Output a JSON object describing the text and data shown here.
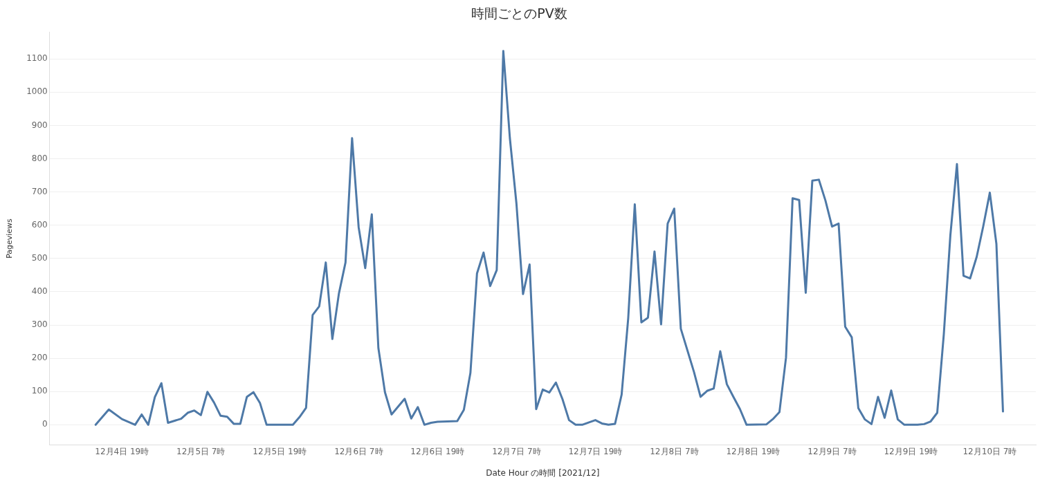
{
  "chart_data": {
    "type": "line",
    "title": "時間ごとのPV数",
    "xlabel": "Date Hour の時間 [2021/12]",
    "ylabel": "Pageviews",
    "x": [
      "2021-12-04T15:00",
      "2021-12-04T17:00",
      "2021-12-04T19:00",
      "2021-12-04T21:00",
      "2021-12-04T22:00",
      "2021-12-04T23:00",
      "2021-12-05T00:00",
      "2021-12-05T01:00",
      "2021-12-05T02:00",
      "2021-12-05T04:00",
      "2021-12-05T05:00",
      "2021-12-05T06:00",
      "2021-12-05T07:00",
      "2021-12-05T08:00",
      "2021-12-05T09:00",
      "2021-12-05T10:00",
      "2021-12-05T11:00",
      "2021-12-05T12:00",
      "2021-12-05T13:00",
      "2021-12-05T14:00",
      "2021-12-05T15:00",
      "2021-12-05T16:00",
      "2021-12-05T17:00",
      "2021-12-05T18:00",
      "2021-12-05T21:00",
      "2021-12-05T22:00",
      "2021-12-05T23:00",
      "2021-12-06T00:00",
      "2021-12-06T01:00",
      "2021-12-06T02:00",
      "2021-12-06T03:00",
      "2021-12-06T04:00",
      "2021-12-06T05:00",
      "2021-12-06T06:00",
      "2021-12-06T07:00",
      "2021-12-06T08:00",
      "2021-12-06T09:00",
      "2021-12-06T10:00",
      "2021-12-06T11:00",
      "2021-12-06T12:00",
      "2021-12-06T14:00",
      "2021-12-06T15:00",
      "2021-12-06T16:00",
      "2021-12-06T17:00",
      "2021-12-06T18:00",
      "2021-12-06T19:00",
      "2021-12-06T22:00",
      "2021-12-06T23:00",
      "2021-12-07T00:00",
      "2021-12-07T01:00",
      "2021-12-07T02:00",
      "2021-12-07T03:00",
      "2021-12-07T04:00",
      "2021-12-07T05:00",
      "2021-12-07T06:00",
      "2021-12-07T07:00",
      "2021-12-07T08:00",
      "2021-12-07T09:00",
      "2021-12-07T10:00",
      "2021-12-07T11:00",
      "2021-12-07T12:00",
      "2021-12-07T13:00",
      "2021-12-07T14:00",
      "2021-12-07T15:00",
      "2021-12-07T16:00",
      "2021-12-07T17:00",
      "2021-12-07T19:00",
      "2021-12-07T20:00",
      "2021-12-07T21:00",
      "2021-12-07T22:00",
      "2021-12-07T23:00",
      "2021-12-08T00:00",
      "2021-12-08T01:00",
      "2021-12-08T02:00",
      "2021-12-08T03:00",
      "2021-12-08T04:00",
      "2021-12-08T05:00",
      "2021-12-08T06:00",
      "2021-12-08T07:00",
      "2021-12-08T08:00",
      "2021-12-08T09:00",
      "2021-12-08T10:00",
      "2021-12-08T11:00",
      "2021-12-08T12:00",
      "2021-12-08T13:00",
      "2021-12-08T14:00",
      "2021-12-08T15:00",
      "2021-12-08T16:00",
      "2021-12-08T17:00",
      "2021-12-08T18:00",
      "2021-12-08T21:00",
      "2021-12-08T22:00",
      "2021-12-08T23:00",
      "2021-12-09T00:00",
      "2021-12-09T01:00",
      "2021-12-09T02:00",
      "2021-12-09T03:00",
      "2021-12-09T04:00",
      "2021-12-09T05:00",
      "2021-12-09T06:00",
      "2021-12-09T07:00",
      "2021-12-09T08:00",
      "2021-12-09T09:00",
      "2021-12-09T10:00",
      "2021-12-09T11:00",
      "2021-12-09T12:00",
      "2021-12-09T13:00",
      "2021-12-09T14:00",
      "2021-12-09T15:00",
      "2021-12-09T16:00",
      "2021-12-09T17:00",
      "2021-12-09T18:00",
      "2021-12-09T20:00",
      "2021-12-09T21:00",
      "2021-12-09T22:00",
      "2021-12-09T23:00",
      "2021-12-10T00:00",
      "2021-12-10T01:00",
      "2021-12-10T02:00",
      "2021-12-10T03:00",
      "2021-12-10T04:00",
      "2021-12-10T05:00",
      "2021-12-10T06:00",
      "2021-12-10T07:00",
      "2021-12-10T08:00",
      "2021-12-10T09:00"
    ],
    "series": [
      {
        "color": "#4e79a7",
        "values": [
          0,
          46,
          17,
          0,
          31,
          0,
          83,
          125,
          6,
          18,
          36,
          43,
          29,
          99,
          67,
          27,
          24,
          3,
          3,
          84,
          98,
          65,
          0,
          0,
          0,
          23,
          51,
          330,
          356,
          488,
          258,
          395,
          488,
          862,
          594,
          471,
          633,
          231,
          98,
          31,
          78,
          19,
          53,
          0,
          6,
          9,
          11,
          45,
          156,
          455,
          518,
          417,
          465,
          1124,
          862,
          665,
          393,
          482,
          47,
          106,
          97,
          127,
          77,
          14,
          0,
          0,
          14,
          4,
          0,
          3,
          91,
          320,
          663,
          308,
          322,
          521,
          302,
          605,
          650,
          289,
          224,
          159,
          84,
          102,
          109,
          221,
          122,
          84,
          47,
          0,
          1,
          17,
          38,
          202,
          681,
          676,
          397,
          734,
          737,
          674,
          596,
          605,
          295,
          263,
          50,
          16,
          2,
          84,
          21,
          103,
          16,
          0,
          0,
          2,
          10,
          36,
          272,
          570,
          784,
          448,
          440,
          505,
          597,
          698,
          544,
          40
        ]
      }
    ],
    "xlim": [
      "2021-12-04T08:00",
      "2021-12-10T14:00"
    ],
    "xticks": [
      {
        "value": "2021-12-04T19:00",
        "label": "12月4日 19時"
      },
      {
        "value": "2021-12-05T07:00",
        "label": "12月5日 7時"
      },
      {
        "value": "2021-12-05T19:00",
        "label": "12月5日 19時"
      },
      {
        "value": "2021-12-06T07:00",
        "label": "12月6日 7時"
      },
      {
        "value": "2021-12-06T19:00",
        "label": "12月6日 19時"
      },
      {
        "value": "2021-12-07T07:00",
        "label": "12月7日 7時"
      },
      {
        "value": "2021-12-07T19:00",
        "label": "12月7日 19時"
      },
      {
        "value": "2021-12-08T07:00",
        "label": "12月8日 7時"
      },
      {
        "value": "2021-12-08T19:00",
        "label": "12月8日 19時"
      },
      {
        "value": "2021-12-09T07:00",
        "label": "12月9日 7時"
      },
      {
        "value": "2021-12-09T19:00",
        "label": "12月9日 19時"
      },
      {
        "value": "2021-12-10T07:00",
        "label": "12月10日 7時"
      }
    ],
    "ylim": [
      -60,
      1180
    ],
    "yticks": [
      0,
      100,
      200,
      300,
      400,
      500,
      600,
      700,
      800,
      900,
      1000,
      1100
    ],
    "grid": "y",
    "legend": false,
    "marker": "none",
    "line_style": "solid"
  }
}
